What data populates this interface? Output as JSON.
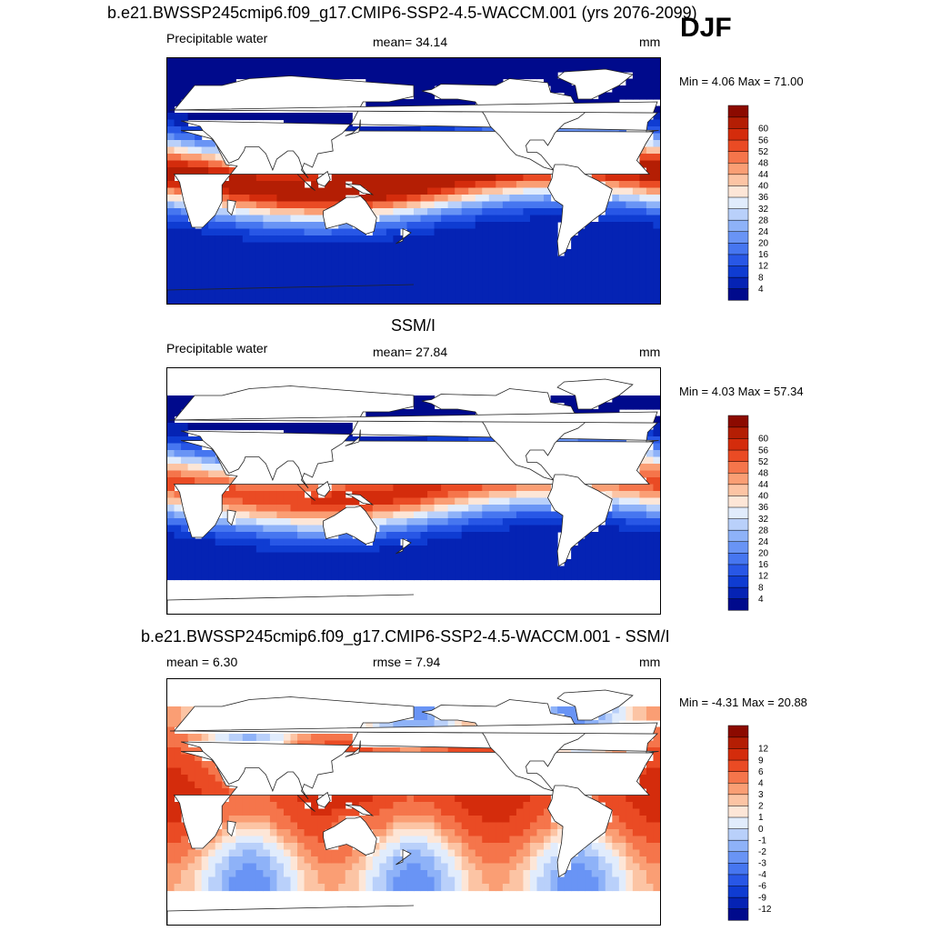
{
  "season": "DJF",
  "panels": [
    {
      "title": "b.e21.BWSSP245cmip6.f09_g17.CMIP6-SSP2-4.5-WACCM.001 (yrs 2076-2099)",
      "left_label": "Precipitable water",
      "center_label": "mean=  34.14",
      "units": "mm",
      "minmax": "Min =   4.06 Max =  71.00"
    },
    {
      "title": "SSM/I",
      "left_label": "Precipitable water",
      "center_label": "mean=  27.84",
      "units": "mm",
      "minmax": "Min =   4.03 Max =  57.34"
    },
    {
      "title": "b.e21.BWSSP245cmip6.f09_g17.CMIP6-SSP2-4.5-WACCM.001 - SSM/I",
      "left_label": "mean =   6.30",
      "center_label": "rmse =   7.94",
      "units": "mm",
      "minmax": "Min =  -4.31 Max =  20.88"
    }
  ],
  "chart_data": [
    {
      "type": "heatmap",
      "title": "b.e21.BWSSP245cmip6.f09_g17.CMIP6-SSP2-4.5-WACCM.001 (yrs 2076-2099)",
      "variable": "Precipitable water",
      "units": "mm",
      "mean": 34.14,
      "min": 4.06,
      "max": 71.0,
      "colorbar_levels": [
        4,
        8,
        12,
        16,
        20,
        24,
        28,
        32,
        36,
        40,
        44,
        48,
        52,
        56,
        60
      ],
      "colors": [
        "#000a8c",
        "#0523b4",
        "#0f3cd2",
        "#2857e6",
        "#4676f0",
        "#6994f5",
        "#8eb2f8",
        "#b9d0fa",
        "#e1ecfc",
        "#fde6d7",
        "#fcc4a4",
        "#fa9e74",
        "#f5754b",
        "#ea4b24",
        "#d42c0c",
        "#b41e04",
        "#8c0a00"
      ],
      "land_masked": true
    },
    {
      "type": "heatmap",
      "title": "SSM/I",
      "variable": "Precipitable water",
      "units": "mm",
      "mean": 27.84,
      "min": 4.03,
      "max": 57.34,
      "colorbar_levels": [
        4,
        8,
        12,
        16,
        20,
        24,
        28,
        32,
        36,
        40,
        44,
        48,
        52,
        56,
        60
      ],
      "colors": [
        "#000a8c",
        "#0523b4",
        "#0f3cd2",
        "#2857e6",
        "#4676f0",
        "#6994f5",
        "#8eb2f8",
        "#b9d0fa",
        "#e1ecfc",
        "#fde6d7",
        "#fcc4a4",
        "#fa9e74",
        "#f5754b",
        "#ea4b24",
        "#d42c0c",
        "#b41e04",
        "#8c0a00"
      ],
      "land_masked": true
    },
    {
      "type": "heatmap",
      "title": "b.e21.BWSSP245cmip6.f09_g17.CMIP6-SSP2-4.5-WACCM.001 - SSM/I",
      "units": "mm",
      "mean": 6.3,
      "rmse": 7.94,
      "min": -4.31,
      "max": 20.88,
      "colorbar_levels": [
        -12,
        -9,
        -6,
        -4,
        -3,
        -2,
        -1,
        0,
        1,
        2,
        3,
        4,
        6,
        9,
        12
      ],
      "colors": [
        "#000a8c",
        "#0523b4",
        "#0f3cd2",
        "#2857e6",
        "#4676f0",
        "#6994f5",
        "#8eb2f8",
        "#b9d0fa",
        "#e1ecfc",
        "#fde6d7",
        "#fcc4a4",
        "#fa9e74",
        "#f5754b",
        "#ea4b24",
        "#d42c0c",
        "#b41e04",
        "#8c0a00"
      ],
      "land_masked": true
    }
  ]
}
